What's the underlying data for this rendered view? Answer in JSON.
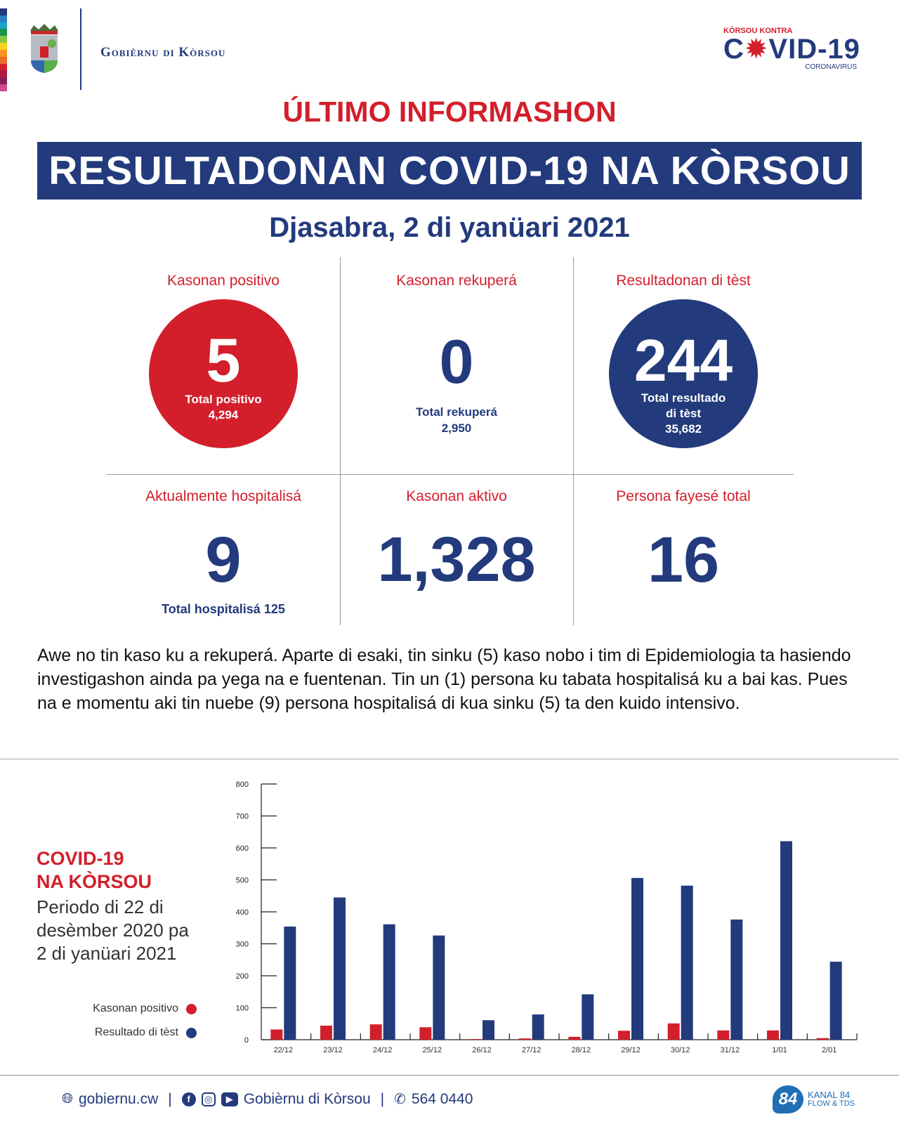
{
  "header": {
    "strip_colors": [
      "#233a7c",
      "#2a7fc1",
      "#1ea3c8",
      "#17934a",
      "#8cc63f",
      "#f4d21f",
      "#f7941d",
      "#ec6b29",
      "#d21f2b",
      "#b0193f",
      "#8a1c5c",
      "#cf4a8b"
    ],
    "org_name": "Gobièrnu di Kòrsou",
    "campaign_top": "KÒRSOU KONTRA",
    "campaign_c": "C",
    "campaign_virus": "✹",
    "campaign_rest": "VID-19",
    "campaign_sub": "CORONAVIRUS"
  },
  "title": {
    "kicker": "ÚLTIMO INFORMASHON",
    "banner": "RESULTADONAN COVID-19 NA KÒRSOU",
    "date": "Djasabra, 2 di yanüari 2021"
  },
  "stats": {
    "positive": {
      "label": "Kasonan positivo",
      "value": "5",
      "sub1": "Total positivo",
      "sub2": "4,294"
    },
    "recovered": {
      "label": "Kasonan rekuperá",
      "value": "0",
      "sub1": "Total rekuperá",
      "sub2": "2,950"
    },
    "tests": {
      "label": "Resultadonan di tèst",
      "value": "244",
      "sub1": "Total resultado",
      "sub1b": "di tèst",
      "sub2": "35,682"
    },
    "hospital": {
      "label": "Aktualmente hospitalisá",
      "value": "9",
      "sub1": "Total hospitalisá 125"
    },
    "active": {
      "label": "Kasonan aktivo",
      "value": "1,328"
    },
    "deaths": {
      "label": "Persona fayesé total",
      "value": "16"
    }
  },
  "paragraph": "Awe no tin kaso ku a rekuperá. Aparte di esaki, tin sinku (5) kaso nobo i tim di Epidemiologia ta hasiendo investigashon ainda pa yega na e fuentenan. Tin un (1) persona ku tabata hospitalisá ku a bai kas. Pues na e momentu aki tin nuebe (9) persona hospitalisá di kua sinku (5) ta den kuido intensivo.",
  "chart_side": {
    "title1": "COVID-19",
    "title2": "NA KÒRSOU",
    "period1": "Periodo di 22 di",
    "period2": "desèmber 2020 pa",
    "period3": "2 di yanüari 2021"
  },
  "chart_data": {
    "type": "bar",
    "categories": [
      "22/12",
      "23/12",
      "24/12",
      "25/12",
      "26/12",
      "27/12",
      "28/12",
      "29/12",
      "30/12",
      "31/12",
      "1/01",
      "2/01"
    ],
    "series": [
      {
        "name": "Kasonan positivo",
        "color": "#d21f2b",
        "values": [
          32,
          44,
          48,
          39,
          2,
          4,
          9,
          28,
          51,
          29,
          29,
          5
        ]
      },
      {
        "name": "Resultado di tèst",
        "color": "#233a7c",
        "values": [
          354,
          445,
          361,
          326,
          61,
          79,
          142,
          506,
          482,
          376,
          621,
          244
        ]
      }
    ],
    "yticks": [
      "0",
      "100",
      "200",
      "300",
      "400",
      "500",
      "600",
      "700",
      "800"
    ],
    "ylim": [
      0,
      800
    ],
    "grid": false,
    "legend": "left"
  },
  "footer": {
    "website": "gobiernu.cw",
    "sep": "|",
    "social": "Gobièrnu di Kòrsou",
    "phone": "564 0440",
    "channel_num": "84",
    "channel_name": "KANAL 84",
    "channel_sub": "FLOW & TDS"
  }
}
